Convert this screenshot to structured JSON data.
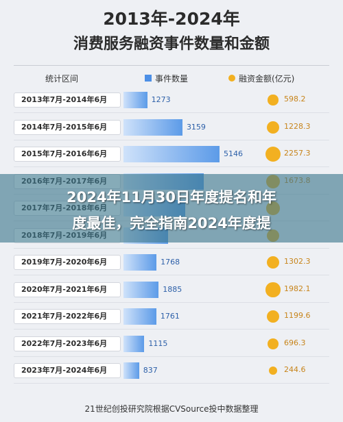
{
  "title_line1": "2013年-2024年",
  "title_line2": "消费服务融资事件数量和金额",
  "headers": {
    "period": "统计区间",
    "count": "事件数量",
    "amount": "融资金额(亿元)"
  },
  "chart_data": {
    "type": "bar",
    "title": "2013年-2024年 消费服务融资事件数量和金额",
    "categories": [
      "2013年7月-2014年6月",
      "2014年7月-2015年6月",
      "2015年7月-2016年6月",
      "2016年7月-2017年6月",
      "2017年7月-2018年6月",
      "2018年7月-2019年6月",
      "2019年7月-2020年6月",
      "2020年7月-2021年6月",
      "2021年7月-2022年6月",
      "2022年7月-2023年6月",
      "2023年7月-2024年6月"
    ],
    "series": [
      {
        "name": "事件数量",
        "values": [
          1273,
          3159,
          5146,
          4300,
          3300,
          2400,
          1768,
          1885,
          1761,
          1115,
          837
        ],
        "labels": [
          "1273",
          "3159",
          "5146",
          "",
          "",
          "",
          "1768",
          "1885",
          "1761",
          "1115",
          "837"
        ],
        "color": "#4c8fe6"
      },
      {
        "name": "融资金额(亿元)",
        "values": [
          598.2,
          1228.3,
          2257.3,
          1673.8,
          1500,
          1300,
          1302.3,
          1982.1,
          1199.6,
          696.3,
          244.6
        ],
        "labels": [
          "598.2",
          "1228.3",
          "2257.3",
          "1673.8",
          "",
          "",
          "1302.3",
          "1982.1",
          "1199.6",
          "696.3",
          "244.6"
        ],
        "color": "#f2b021"
      }
    ]
  },
  "banner": {
    "line1": "2024年11月30日年度提名和年",
    "line2": "度最佳，完全指南2024年度提"
  },
  "source": "21世纪创投研究院根据CVSource投中数据整理"
}
